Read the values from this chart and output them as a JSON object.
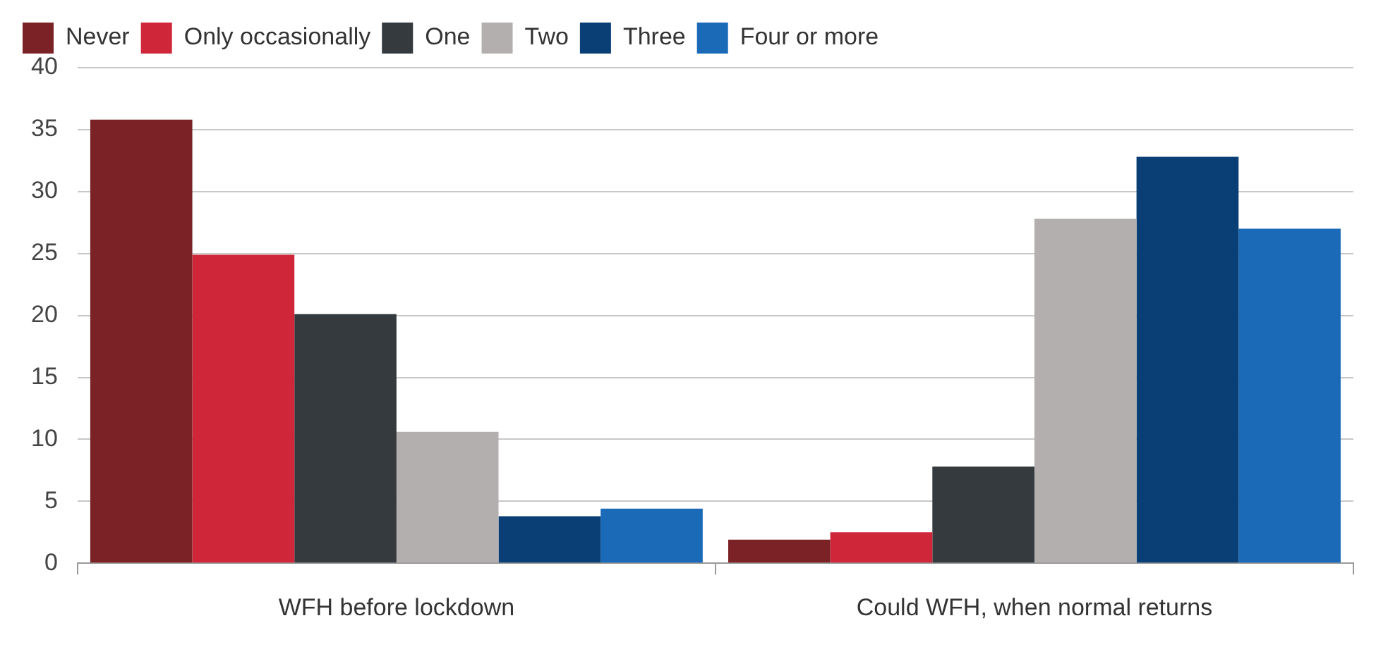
{
  "chart_data": {
    "type": "bar",
    "categories": [
      "WFH before lockdown",
      "Could WFH, when normal returns"
    ],
    "series": [
      {
        "name": "Never",
        "color": "#7b2226",
        "values": [
          35.8,
          1.9
        ]
      },
      {
        "name": "Only occasionally",
        "color": "#d0263a",
        "values": [
          24.9,
          2.5
        ]
      },
      {
        "name": "One",
        "color": "#343a3e",
        "values": [
          20.1,
          7.8
        ]
      },
      {
        "name": "Two",
        "color": "#b3afae",
        "values": [
          10.6,
          27.8
        ]
      },
      {
        "name": "Three",
        "color": "#0a3f75",
        "values": [
          3.8,
          32.8
        ]
      },
      {
        "name": "Four or more",
        "color": "#1a6ab8",
        "values": [
          4.4,
          27.0
        ]
      }
    ],
    "ylim": [
      0,
      40
    ],
    "yticks": [
      0,
      5,
      10,
      15,
      20,
      25,
      30,
      35,
      40
    ],
    "grid": "y",
    "legend": "top left"
  }
}
